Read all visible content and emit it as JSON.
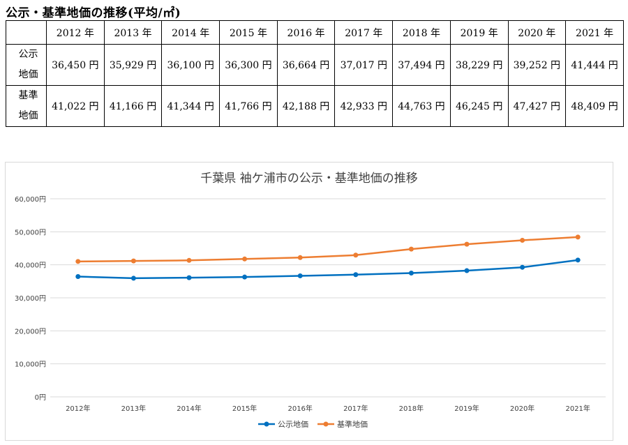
{
  "heading": "公示・基準地価の推移(平均/㎡)",
  "table": {
    "years": [
      "2012 年",
      "2013 年",
      "2014 年",
      "2015 年",
      "2016 年",
      "2017 年",
      "2018 年",
      "2019 年",
      "2020 年",
      "2021 年"
    ],
    "rows": [
      {
        "label_line1": "公示",
        "label_line2": "地価",
        "cells": [
          "36,450 円",
          "35,929 円",
          "36,100 円",
          "36,300 円",
          "36,664 円",
          "37,017 円",
          "37,494 円",
          "38,229 円",
          "39,252 円",
          "41,444 円"
        ]
      },
      {
        "label_line1": "基準",
        "label_line2": "地価",
        "cells": [
          "41,022 円",
          "41,166 円",
          "41,344 円",
          "41,766 円",
          "42,188 円",
          "42,933 円",
          "44,763 円",
          "46,245 円",
          "47,427 円",
          "48,409 円"
        ]
      }
    ]
  },
  "colors": {
    "series1": "#0070C0",
    "series2": "#ED7D31",
    "grid": "#d9d9d9",
    "text": "#404040"
  },
  "chart_data": {
    "type": "line",
    "title": "千葉県 袖ケ浦市の公示・基準地価の推移",
    "categories": [
      "2012年",
      "2013年",
      "2014年",
      "2015年",
      "2016年",
      "2017年",
      "2018年",
      "2019年",
      "2020年",
      "2021年"
    ],
    "y_tick_labels": [
      "0円",
      "10,000円",
      "20,000円",
      "30,000円",
      "40,000円",
      "50,000円",
      "60,000円"
    ],
    "ylim": [
      0,
      60000
    ],
    "y_step": 10000,
    "grid": true,
    "legend_position": "bottom",
    "series": [
      {
        "name": "公示地価",
        "values": [
          36450,
          35929,
          36100,
          36300,
          36664,
          37017,
          37494,
          38229,
          39252,
          41444
        ]
      },
      {
        "name": "基準地価",
        "values": [
          41022,
          41166,
          41344,
          41766,
          42188,
          42933,
          44763,
          46245,
          47427,
          48409
        ]
      }
    ]
  }
}
